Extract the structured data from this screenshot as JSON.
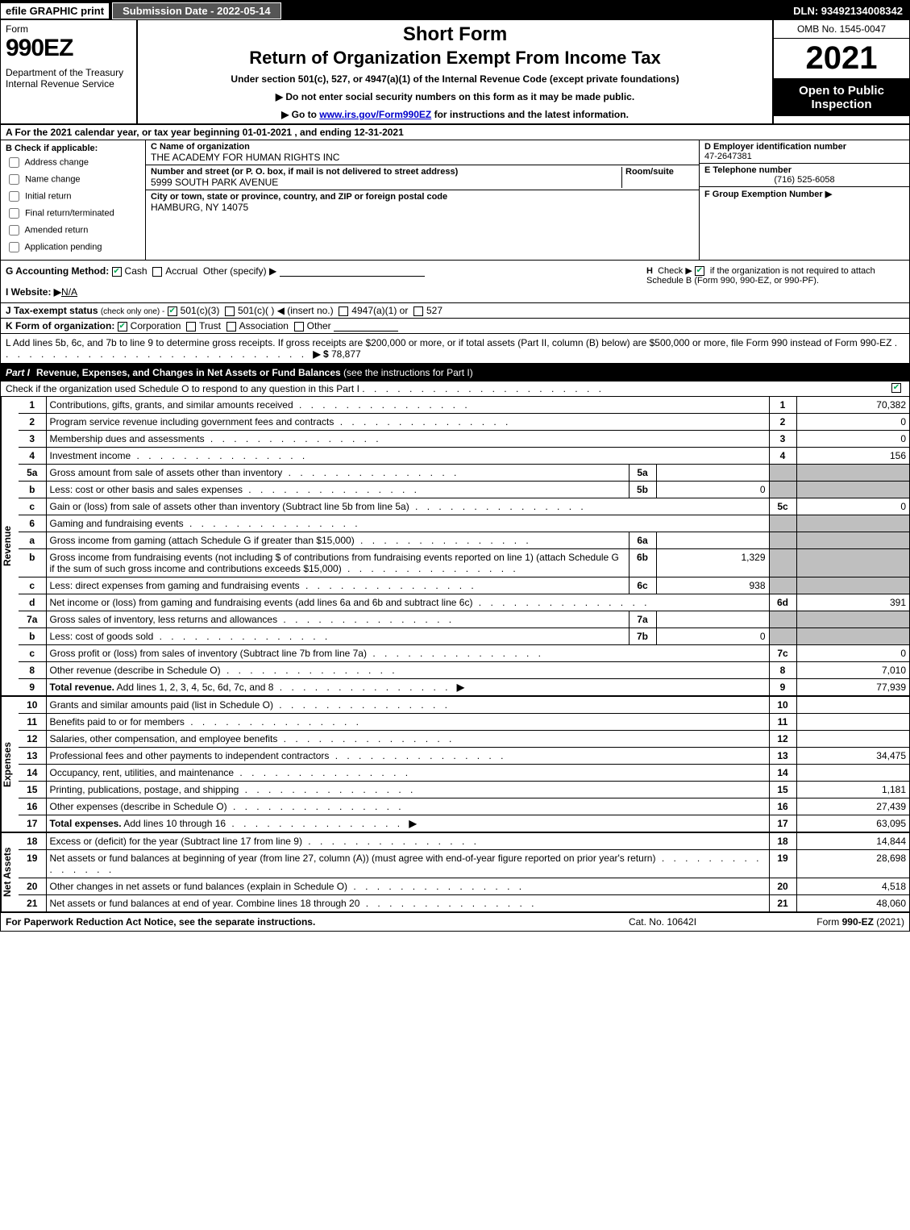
{
  "topbar": {
    "efile": "efile GRAPHIC print",
    "submission_date_label": "Submission Date - 2022-05-14",
    "dln": "DLN: 93492134008342"
  },
  "header": {
    "form_word": "Form",
    "form_number": "990EZ",
    "dept": "Department of the Treasury\nInternal Revenue Service",
    "short_form": "Short Form",
    "return_title": "Return of Organization Exempt From Income Tax",
    "subtitle": "Under section 501(c), 527, or 4947(a)(1) of the Internal Revenue Code (except private foundations)",
    "instr1": "▶ Do not enter social security numbers on this form as it may be made public.",
    "instr2_pre": "▶ Go to ",
    "instr2_link": "www.irs.gov/Form990EZ",
    "instr2_post": " for instructions and the latest information.",
    "omb": "OMB No. 1545-0047",
    "year": "2021",
    "open_public": "Open to Public Inspection"
  },
  "A": {
    "text": "A  For the 2021 calendar year, or tax year beginning 01-01-2021 , and ending 12-31-2021"
  },
  "B": {
    "label": "B",
    "heading": "Check if applicable:",
    "items": [
      {
        "label": "Address change",
        "checked": false
      },
      {
        "label": "Name change",
        "checked": false
      },
      {
        "label": "Initial return",
        "checked": false
      },
      {
        "label": "Final return/terminated",
        "checked": false
      },
      {
        "label": "Amended return",
        "checked": false
      },
      {
        "label": "Application pending",
        "checked": false
      }
    ]
  },
  "C": {
    "name_label": "C Name of organization",
    "name_val": "THE ACADEMY FOR HUMAN RIGHTS INC",
    "street_label": "Number and street (or P. O. box, if mail is not delivered to street address)",
    "room_label": "Room/suite",
    "street_val": "5999 SOUTH PARK AVENUE",
    "city_label": "City or town, state or province, country, and ZIP or foreign postal code",
    "city_val": "HAMBURG, NY  14075"
  },
  "D": {
    "label": "D Employer identification number",
    "val": "47-2647381"
  },
  "E": {
    "label": "E Telephone number",
    "val": "(716) 525-6058"
  },
  "F": {
    "label": "F Group Exemption Number",
    "arrow": "▶",
    "val": ""
  },
  "G": {
    "label": "G Accounting Method:",
    "cash": "Cash",
    "cash_checked": true,
    "accrual": "Accrual",
    "accrual_checked": false,
    "other": "Other (specify) ▶"
  },
  "H": {
    "label": "H",
    "text1": "Check ▶",
    "checked": true,
    "text2": "if the organization is not required to attach Schedule B (Form 990, 990-EZ, or 990-PF)."
  },
  "I": {
    "label": "I Website: ▶",
    "val": "N/A"
  },
  "J": {
    "label": "J Tax-exempt status",
    "sub": "(check only one) -",
    "opt1_checked": true,
    "opt1": "501(c)(3)",
    "opt2_checked": false,
    "opt2": "501(c)( ) ◀ (insert no.)",
    "opt3_checked": false,
    "opt3": "4947(a)(1) or",
    "opt4_checked": false,
    "opt4": "527"
  },
  "K": {
    "label": "K Form of organization:",
    "corp_checked": true,
    "corp": "Corporation",
    "trust_checked": false,
    "trust": "Trust",
    "assoc_checked": false,
    "assoc": "Association",
    "other_checked": false,
    "other": "Other"
  },
  "L": {
    "text": "L Add lines 5b, 6c, and 7b to line 9 to determine gross receipts. If gross receipts are $200,000 or more, or if total assets (Part II, column (B) below) are $500,000 or more, file Form 990 instead of Form 990-EZ",
    "arrow": "▶ $",
    "val": "78,877"
  },
  "partI": {
    "label": "Part I",
    "title": "Revenue, Expenses, and Changes in Net Assets or Fund Balances",
    "sub": "(see the instructions for Part I)",
    "check_line": "Check if the organization used Schedule O to respond to any question in this Part I",
    "check_checked": true
  },
  "sidelabels": {
    "revenue": "Revenue",
    "expenses": "Expenses",
    "netassets": "Net Assets"
  },
  "revenue_lines": [
    {
      "n": "1",
      "desc": "Contributions, gifts, grants, and similar amounts received",
      "ll": "1",
      "amt": "70,382"
    },
    {
      "n": "2",
      "desc": "Program service revenue including government fees and contracts",
      "ll": "2",
      "amt": "0"
    },
    {
      "n": "3",
      "desc": "Membership dues and assessments",
      "ll": "3",
      "amt": "0"
    },
    {
      "n": "4",
      "desc": "Investment income",
      "ll": "4",
      "amt": "156"
    },
    {
      "n": "5a",
      "desc": "Gross amount from sale of assets other than inventory",
      "sl": "5a",
      "sv": "",
      "ll": "",
      "amt": "",
      "shade": true
    },
    {
      "n": "b",
      "desc": "Less: cost or other basis and sales expenses",
      "sl": "5b",
      "sv": "0",
      "ll": "",
      "amt": "",
      "shade": true
    },
    {
      "n": "c",
      "desc": "Gain or (loss) from sale of assets other than inventory (Subtract line 5b from line 5a)",
      "ll": "5c",
      "amt": "0"
    },
    {
      "n": "6",
      "desc": "Gaming and fundraising events",
      "ll": "",
      "amt": "",
      "shade": true
    },
    {
      "n": "a",
      "desc": "Gross income from gaming (attach Schedule G if greater than $15,000)",
      "sl": "6a",
      "sv": "",
      "ll": "",
      "amt": "",
      "shade": true
    },
    {
      "n": "b",
      "desc": "Gross income from fundraising events (not including $                    of contributions from fundraising events reported on line 1) (attach Schedule G if the sum of such gross income and contributions exceeds $15,000)",
      "sl": "6b",
      "sv": "1,329",
      "ll": "",
      "amt": "",
      "shade": true
    },
    {
      "n": "c",
      "desc": "Less: direct expenses from gaming and fundraising events",
      "sl": "6c",
      "sv": "938",
      "ll": "",
      "amt": "",
      "shade": true
    },
    {
      "n": "d",
      "desc": "Net income or (loss) from gaming and fundraising events (add lines 6a and 6b and subtract line 6c)",
      "ll": "6d",
      "amt": "391"
    },
    {
      "n": "7a",
      "desc": "Gross sales of inventory, less returns and allowances",
      "sl": "7a",
      "sv": "",
      "ll": "",
      "amt": "",
      "shade": true
    },
    {
      "n": "b",
      "desc": "Less: cost of goods sold",
      "sl": "7b",
      "sv": "0",
      "ll": "",
      "amt": "",
      "shade": true
    },
    {
      "n": "c",
      "desc": "Gross profit or (loss) from sales of inventory (Subtract line 7b from line 7a)",
      "ll": "7c",
      "amt": "0"
    },
    {
      "n": "8",
      "desc": "Other revenue (describe in Schedule O)",
      "ll": "8",
      "amt": "7,010"
    },
    {
      "n": "9",
      "desc": "Total revenue. Add lines 1, 2, 3, 4, 5c, 6d, 7c, and 8",
      "arrow": "▶",
      "ll": "9",
      "amt": "77,939",
      "bold": true
    }
  ],
  "expense_lines": [
    {
      "n": "10",
      "desc": "Grants and similar amounts paid (list in Schedule O)",
      "ll": "10",
      "amt": ""
    },
    {
      "n": "11",
      "desc": "Benefits paid to or for members",
      "ll": "11",
      "amt": ""
    },
    {
      "n": "12",
      "desc": "Salaries, other compensation, and employee benefits",
      "ll": "12",
      "amt": ""
    },
    {
      "n": "13",
      "desc": "Professional fees and other payments to independent contractors",
      "ll": "13",
      "amt": "34,475"
    },
    {
      "n": "14",
      "desc": "Occupancy, rent, utilities, and maintenance",
      "ll": "14",
      "amt": ""
    },
    {
      "n": "15",
      "desc": "Printing, publications, postage, and shipping",
      "ll": "15",
      "amt": "1,181"
    },
    {
      "n": "16",
      "desc": "Other expenses (describe in Schedule O)",
      "ll": "16",
      "amt": "27,439"
    },
    {
      "n": "17",
      "desc": "Total expenses. Add lines 10 through 16",
      "arrow": "▶",
      "ll": "17",
      "amt": "63,095",
      "bold": true
    }
  ],
  "netasset_lines": [
    {
      "n": "18",
      "desc": "Excess or (deficit) for the year (Subtract line 17 from line 9)",
      "ll": "18",
      "amt": "14,844"
    },
    {
      "n": "19",
      "desc": "Net assets or fund balances at beginning of year (from line 27, column (A)) (must agree with end-of-year figure reported on prior year's return)",
      "ll": "19",
      "amt": "28,698"
    },
    {
      "n": "20",
      "desc": "Other changes in net assets or fund balances (explain in Schedule O)",
      "ll": "20",
      "amt": "4,518"
    },
    {
      "n": "21",
      "desc": "Net assets or fund balances at end of year. Combine lines 18 through 20",
      "ll": "21",
      "amt": "48,060"
    }
  ],
  "footer": {
    "left": "For Paperwork Reduction Act Notice, see the separate instructions.",
    "mid": "Cat. No. 10642I",
    "right_pre": "Form ",
    "right_form": "990-EZ",
    "right_post": " (2021)"
  },
  "style": {
    "background": "#ffffff",
    "text": "#000000",
    "shaded": "#bfbfbf",
    "link": "#0000cc",
    "check_green": "#00aa55"
  }
}
